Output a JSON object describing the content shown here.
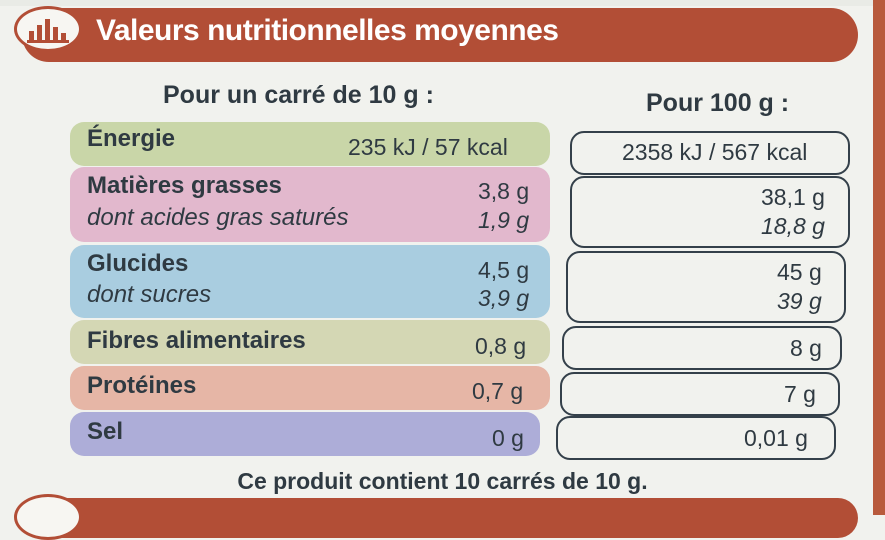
{
  "header": {
    "title": "Valeurs nutritionnelles moyennes",
    "icon": "bar-chart-icon"
  },
  "columns": {
    "per_portion": "Pour un carré de 10 g :",
    "per_100": "Pour 100 g :"
  },
  "rows": {
    "energie": {
      "label": "Énergie",
      "portion": "235 kJ / 57 kcal",
      "per100": "2358 kJ / 567 kcal",
      "color": "#c9d6a8"
    },
    "matieres": {
      "label": "Matières grasses",
      "portion": "3,8 g",
      "per100": "38,1 g",
      "sub_label": "dont acides gras saturés",
      "sub_portion": "1,9 g",
      "sub_per100": "18,8 g",
      "color": "#e2b8cd"
    },
    "glucides": {
      "label": "Glucides",
      "portion": "4,5 g",
      "per100": "45 g",
      "sub_label": "dont sucres",
      "sub_portion": "3,9 g",
      "sub_per100": "39 g",
      "color": "#a9cde0"
    },
    "fibres": {
      "label": "Fibres alimentaires",
      "portion": "0,8 g",
      "per100": "8 g",
      "color": "#d4d7b4"
    },
    "proteines": {
      "label": "Protéines",
      "portion": "0,7 g",
      "per100": "7 g",
      "color": "#e6b6a6"
    },
    "sel": {
      "label": "Sel",
      "portion": "0 g",
      "per100": "0,01 g",
      "color": "#adadd8"
    }
  },
  "footer": {
    "text": "Ce produit contient 10 carrés de 10 g."
  },
  "colors": {
    "brand": "#b24e36",
    "text": "#2f3a42",
    "background": "#f1f2ee"
  }
}
